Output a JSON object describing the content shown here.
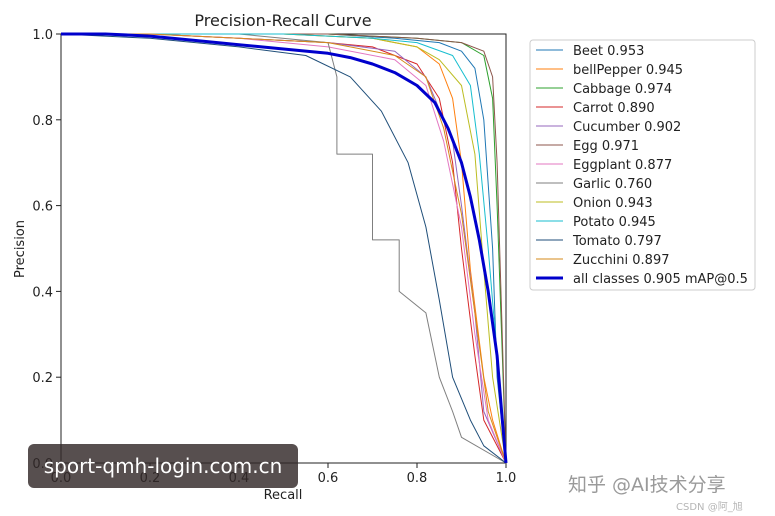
{
  "chart_data": {
    "type": "line",
    "title": "Precision-Recall Curve",
    "xlabel": "Recall",
    "ylabel": "Precision",
    "xlim": [
      0,
      1
    ],
    "ylim": [
      0,
      1
    ],
    "xticks": [
      "0.0",
      "0.2",
      "0.4",
      "0.6",
      "0.8",
      "1.0"
    ],
    "yticks": [
      "0.0",
      "0.2",
      "0.4",
      "0.6",
      "0.8",
      "1.0"
    ],
    "legend_position": "outside-right",
    "series": [
      {
        "name": "Beet 0.953",
        "color": "#1f77b4",
        "width": 1,
        "x": [
          0,
          0.2,
          0.4,
          0.6,
          0.75,
          0.85,
          0.9,
          0.93,
          0.95,
          0.97,
          0.98,
          1.0
        ],
        "y": [
          1,
          1,
          1,
          1,
          0.99,
          0.98,
          0.96,
          0.92,
          0.8,
          0.5,
          0.2,
          0.0
        ]
      },
      {
        "name": "bellPepper 0.945",
        "color": "#ff7f0e",
        "width": 1,
        "x": [
          0,
          0.3,
          0.5,
          0.7,
          0.8,
          0.85,
          0.88,
          0.9,
          0.92,
          0.95,
          0.97,
          1.0
        ],
        "y": [
          1,
          1,
          1,
          0.99,
          0.97,
          0.93,
          0.85,
          0.7,
          0.45,
          0.2,
          0.1,
          0.0
        ]
      },
      {
        "name": "Cabbage 0.974",
        "color": "#2ca02c",
        "width": 1,
        "x": [
          0,
          0.3,
          0.6,
          0.8,
          0.9,
          0.95,
          0.97,
          0.98,
          0.99,
          1.0
        ],
        "y": [
          1,
          1,
          1,
          0.99,
          0.98,
          0.95,
          0.85,
          0.6,
          0.3,
          0.0
        ]
      },
      {
        "name": "Carrot 0.890",
        "color": "#d62728",
        "width": 1,
        "x": [
          0,
          0.2,
          0.4,
          0.6,
          0.7,
          0.8,
          0.85,
          0.88,
          0.9,
          0.93,
          0.95,
          1.0
        ],
        "y": [
          1,
          1,
          0.99,
          0.98,
          0.97,
          0.93,
          0.85,
          0.7,
          0.5,
          0.25,
          0.1,
          0.0
        ]
      },
      {
        "name": "Cucumber 0.902",
        "color": "#9467bd",
        "width": 1,
        "x": [
          0,
          0.2,
          0.4,
          0.6,
          0.75,
          0.82,
          0.88,
          0.9,
          0.93,
          0.95,
          1.0
        ],
        "y": [
          1,
          1,
          0.99,
          0.98,
          0.96,
          0.9,
          0.75,
          0.6,
          0.35,
          0.12,
          0.0
        ]
      },
      {
        "name": "Egg 0.971",
        "color": "#8c564b",
        "width": 1,
        "x": [
          0,
          0.3,
          0.6,
          0.8,
          0.9,
          0.95,
          0.97,
          0.98,
          0.99,
          1.0
        ],
        "y": [
          1,
          1,
          1,
          0.99,
          0.98,
          0.96,
          0.9,
          0.7,
          0.35,
          0.0
        ]
      },
      {
        "name": "Eggplant 0.877",
        "color": "#e377c2",
        "width": 1,
        "x": [
          0,
          0.2,
          0.4,
          0.6,
          0.75,
          0.82,
          0.86,
          0.9,
          0.93,
          0.96,
          1.0
        ],
        "y": [
          1,
          1,
          0.99,
          0.97,
          0.94,
          0.88,
          0.75,
          0.55,
          0.3,
          0.1,
          0.0
        ]
      },
      {
        "name": "Garlic 0.760",
        "color": "#7f7f7f",
        "width": 1,
        "x": [
          0,
          0.2,
          0.4,
          0.6,
          0.62,
          0.62,
          0.7,
          0.7,
          0.76,
          0.76,
          0.82,
          0.85,
          0.88,
          0.9,
          1.0
        ],
        "y": [
          1,
          1,
          1,
          0.98,
          0.9,
          0.72,
          0.72,
          0.52,
          0.52,
          0.4,
          0.35,
          0.2,
          0.12,
          0.06,
          0.0
        ]
      },
      {
        "name": "Onion 0.943",
        "color": "#bcbd22",
        "width": 1,
        "x": [
          0,
          0.3,
          0.5,
          0.7,
          0.8,
          0.85,
          0.9,
          0.93,
          0.95,
          0.97,
          1.0
        ],
        "y": [
          1,
          1,
          1,
          0.99,
          0.97,
          0.94,
          0.88,
          0.72,
          0.45,
          0.2,
          0.0
        ]
      },
      {
        "name": "Potato 0.945",
        "color": "#17becf",
        "width": 1,
        "x": [
          0,
          0.3,
          0.5,
          0.7,
          0.8,
          0.88,
          0.92,
          0.94,
          0.96,
          0.98,
          1.0
        ],
        "y": [
          1,
          1,
          1,
          0.99,
          0.98,
          0.95,
          0.88,
          0.72,
          0.5,
          0.25,
          0.0
        ]
      },
      {
        "name": "Tomato 0.797",
        "color": "#1f4e79",
        "width": 1,
        "x": [
          0,
          0.2,
          0.4,
          0.55,
          0.65,
          0.72,
          0.78,
          0.82,
          0.85,
          0.88,
          0.92,
          0.95,
          1.0
        ],
        "y": [
          1,
          0.99,
          0.97,
          0.95,
          0.9,
          0.82,
          0.7,
          0.55,
          0.38,
          0.2,
          0.1,
          0.04,
          0.0
        ]
      },
      {
        "name": "Zucchini 0.897",
        "color": "#d68a1a",
        "width": 1,
        "x": [
          0,
          0.2,
          0.4,
          0.6,
          0.75,
          0.82,
          0.86,
          0.9,
          0.93,
          0.96,
          1.0
        ],
        "y": [
          1,
          1,
          0.99,
          0.98,
          0.95,
          0.9,
          0.78,
          0.58,
          0.35,
          0.12,
          0.0
        ]
      },
      {
        "name": "all classes 0.905 mAP@0.5",
        "color": "#0000cc",
        "width": 3,
        "x": [
          0,
          0.1,
          0.2,
          0.3,
          0.4,
          0.5,
          0.6,
          0.65,
          0.7,
          0.75,
          0.8,
          0.84,
          0.87,
          0.9,
          0.92,
          0.94,
          0.96,
          0.98,
          0.99,
          1.0
        ],
        "y": [
          1,
          1,
          0.995,
          0.985,
          0.975,
          0.965,
          0.955,
          0.945,
          0.93,
          0.91,
          0.88,
          0.84,
          0.78,
          0.7,
          0.62,
          0.52,
          0.4,
          0.25,
          0.12,
          0.0
        ]
      }
    ]
  },
  "overlay": {
    "banner_text": "sport-qmh-login.com.cn"
  },
  "watermark": {
    "main": "知乎 @AI技术分享",
    "small": "CSDN @阿_旭"
  }
}
